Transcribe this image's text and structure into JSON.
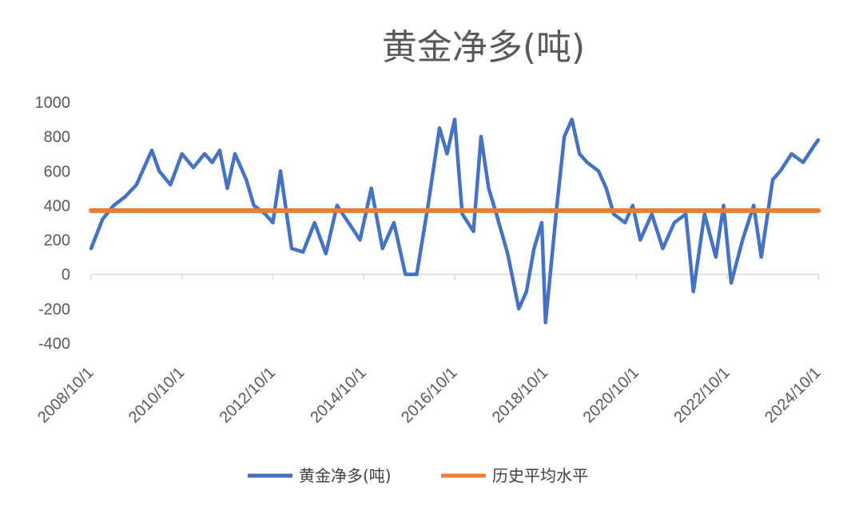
{
  "chart_data": {
    "type": "line",
    "title": "黄金净多(吨)",
    "xlabel": "",
    "ylabel": "",
    "ylim": [
      -400,
      1000
    ],
    "yticks": [
      1000,
      800,
      600,
      400,
      200,
      0,
      -200,
      -400
    ],
    "xlim": [
      "2008-10-01",
      "2024-10-01"
    ],
    "xtick_labels": [
      "2008/10/1",
      "2010/10/1",
      "2012/10/1",
      "2014/10/1",
      "2016/10/1",
      "2018/10/1",
      "2020/10/1",
      "2022/10/1",
      "2024/10/1"
    ],
    "grid": false,
    "legend_position": "bottom",
    "series": [
      {
        "name": "黄金净多(吨)",
        "color": "#4472C4",
        "x": [
          "2008-10-01",
          "2009-01-01",
          "2009-04-01",
          "2009-07-01",
          "2009-10-01",
          "2009-12-01",
          "2010-02-01",
          "2010-04-01",
          "2010-07-01",
          "2010-10-01",
          "2011-01-01",
          "2011-04-01",
          "2011-06-01",
          "2011-08-01",
          "2011-10-01",
          "2011-12-01",
          "2012-03-01",
          "2012-05-01",
          "2012-08-01",
          "2012-10-01",
          "2012-12-01",
          "2013-03-01",
          "2013-06-01",
          "2013-09-01",
          "2013-12-01",
          "2014-03-01",
          "2014-06-01",
          "2014-09-01",
          "2014-12-01",
          "2015-03-01",
          "2015-06-01",
          "2015-09-01",
          "2015-12-01",
          "2016-03-01",
          "2016-06-01",
          "2016-08-01",
          "2016-10-01",
          "2016-12-01",
          "2017-03-01",
          "2017-05-01",
          "2017-07-01",
          "2017-09-01",
          "2017-12-01",
          "2018-03-01",
          "2018-05-01",
          "2018-07-01",
          "2018-09-01",
          "2018-10-01",
          "2019-01-01",
          "2019-03-01",
          "2019-05-01",
          "2019-07-01",
          "2019-09-01",
          "2019-12-01",
          "2020-02-01",
          "2020-04-01",
          "2020-07-01",
          "2020-09-01",
          "2020-11-01",
          "2021-02-01",
          "2021-05-01",
          "2021-08-01",
          "2021-11-01",
          "2022-01-01",
          "2022-04-01",
          "2022-07-01",
          "2022-09-01",
          "2022-11-01",
          "2023-02-01",
          "2023-05-01",
          "2023-07-01",
          "2023-10-01",
          "2023-12-01",
          "2024-03-01",
          "2024-06-01",
          "2024-09-01",
          "2024-10-01"
        ],
        "values": [
          150,
          320,
          400,
          450,
          520,
          620,
          720,
          600,
          520,
          700,
          620,
          700,
          650,
          720,
          500,
          700,
          550,
          400,
          350,
          300,
          600,
          150,
          130,
          300,
          120,
          400,
          300,
          200,
          500,
          150,
          300,
          0,
          0,
          400,
          850,
          700,
          900,
          350,
          250,
          800,
          500,
          350,
          120,
          -200,
          -100,
          150,
          300,
          -280,
          400,
          800,
          900,
          700,
          650,
          600,
          500,
          350,
          300,
          400,
          200,
          350,
          150,
          300,
          350,
          -100,
          350,
          100,
          400,
          -50,
          200,
          400,
          100,
          550,
          600,
          700,
          650,
          750,
          780
        ]
      },
      {
        "name": "历史平均水平",
        "color": "#ED7D31",
        "x": [
          "2008-10-01",
          "2024-10-01"
        ],
        "values": [
          370,
          370
        ]
      }
    ]
  }
}
